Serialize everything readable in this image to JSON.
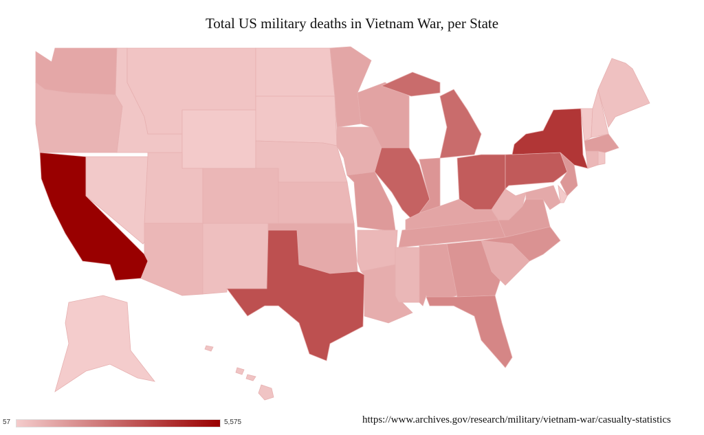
{
  "title": "Total US military deaths in Vietnam War, per State",
  "source": "https://www.archives.gov/research/military/vietnam-war/casualty-statistics",
  "legend": {
    "min_label": "57",
    "max_label": "5,575",
    "min": 57,
    "max": 5575,
    "color_low": "#f4cccc",
    "color_high": "#990000"
  },
  "chart_data": {
    "type": "choropleth",
    "title": "Total US military deaths in Vietnam War, per State",
    "values": {
      "CA": 5575,
      "NY": 4121,
      "TX": 3417,
      "PA": 3144,
      "OH": 3095,
      "IL": 2935,
      "MI": 2654,
      "FL": 1954,
      "NC": 1613,
      "GA": 1581,
      "IN": 1533,
      "NJ": 1487,
      "MO": 1418,
      "MA": 1331,
      "VA": 1305,
      "TN": 1295,
      "AL": 1208,
      "WI": 1161,
      "KY": 1105,
      "MN": 1077,
      "WA": 1048,
      "MD": 1014,
      "OK": 987,
      "SC": 895,
      "LA": 885,
      "IA": 852,
      "WV": 732,
      "OR": 710,
      "MS": 636,
      "KS": 627,
      "CO": 623,
      "AZ": 620,
      "CT": 612,
      "AR": 592,
      "NM": 398,
      "NE": 396,
      "UT": 361,
      "ME": 343,
      "HI": 276,
      "MT": 267,
      "NH": 226,
      "ID": 216,
      "RI": 209,
      "ND": 198,
      "SD": 192,
      "NV": 151,
      "DE": 122,
      "WY": 119,
      "VT": 100,
      "AK": 57
    }
  }
}
